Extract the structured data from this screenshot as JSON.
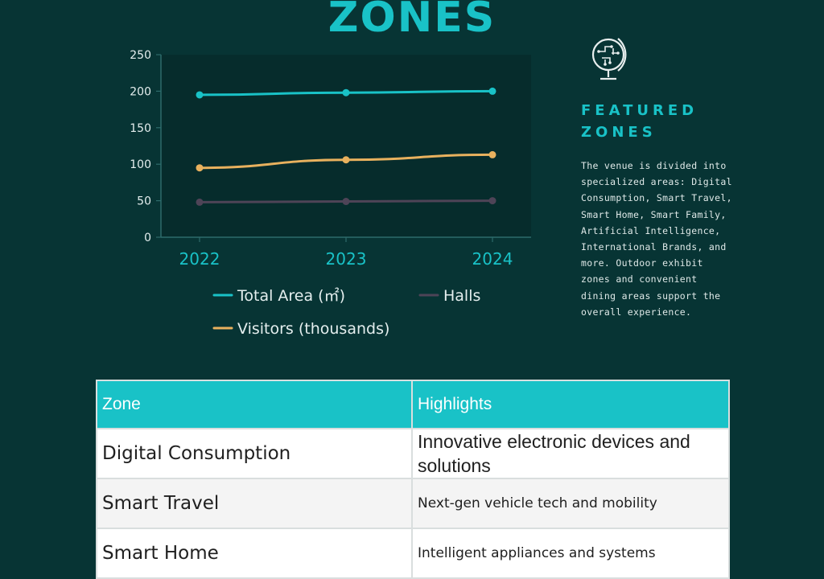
{
  "page": {
    "title": "ZONES"
  },
  "featured": {
    "heading_line1": "FEATURED",
    "heading_line2": "ZONES",
    "description": "The venue is divided into specialized areas: Digital Consumption, Smart Travel, Smart Home, Smart Family, Artificial Intelligence, International Brands, and more. Outdoor exhibit zones and convenient dining areas support the overall experience."
  },
  "table": {
    "headers": [
      "Zone",
      "Highlights"
    ],
    "rows": [
      {
        "zone": "Digital Consumption",
        "highlights": "Innovative electronic devices and solutions"
      },
      {
        "zone": "Smart Travel",
        "highlights": "Next-gen vehicle tech and mobility"
      },
      {
        "zone": "Smart Home",
        "highlights": "Intelligent appliances and systems"
      }
    ]
  },
  "colors": {
    "background": "#073434",
    "accent": "#19c2c7",
    "visitors": "#e8b15e",
    "halls": "#4e4457"
  },
  "chart_data": {
    "type": "line",
    "categories": [
      "2022",
      "2023",
      "2024"
    ],
    "yticks": [
      "0",
      "50",
      "100",
      "150",
      "200",
      "250"
    ],
    "ylim": [
      0,
      250
    ],
    "series": [
      {
        "name": "Total Area (㎡)",
        "color": "#19c2c7",
        "values": [
          195,
          198,
          200
        ]
      },
      {
        "name": "Halls",
        "color": "#4e4457",
        "values": [
          48,
          49,
          50
        ]
      },
      {
        "name": "Visitors (thousands)",
        "color": "#e8b15e",
        "values": [
          95,
          106,
          113
        ]
      }
    ],
    "legend_position": "bottom"
  }
}
